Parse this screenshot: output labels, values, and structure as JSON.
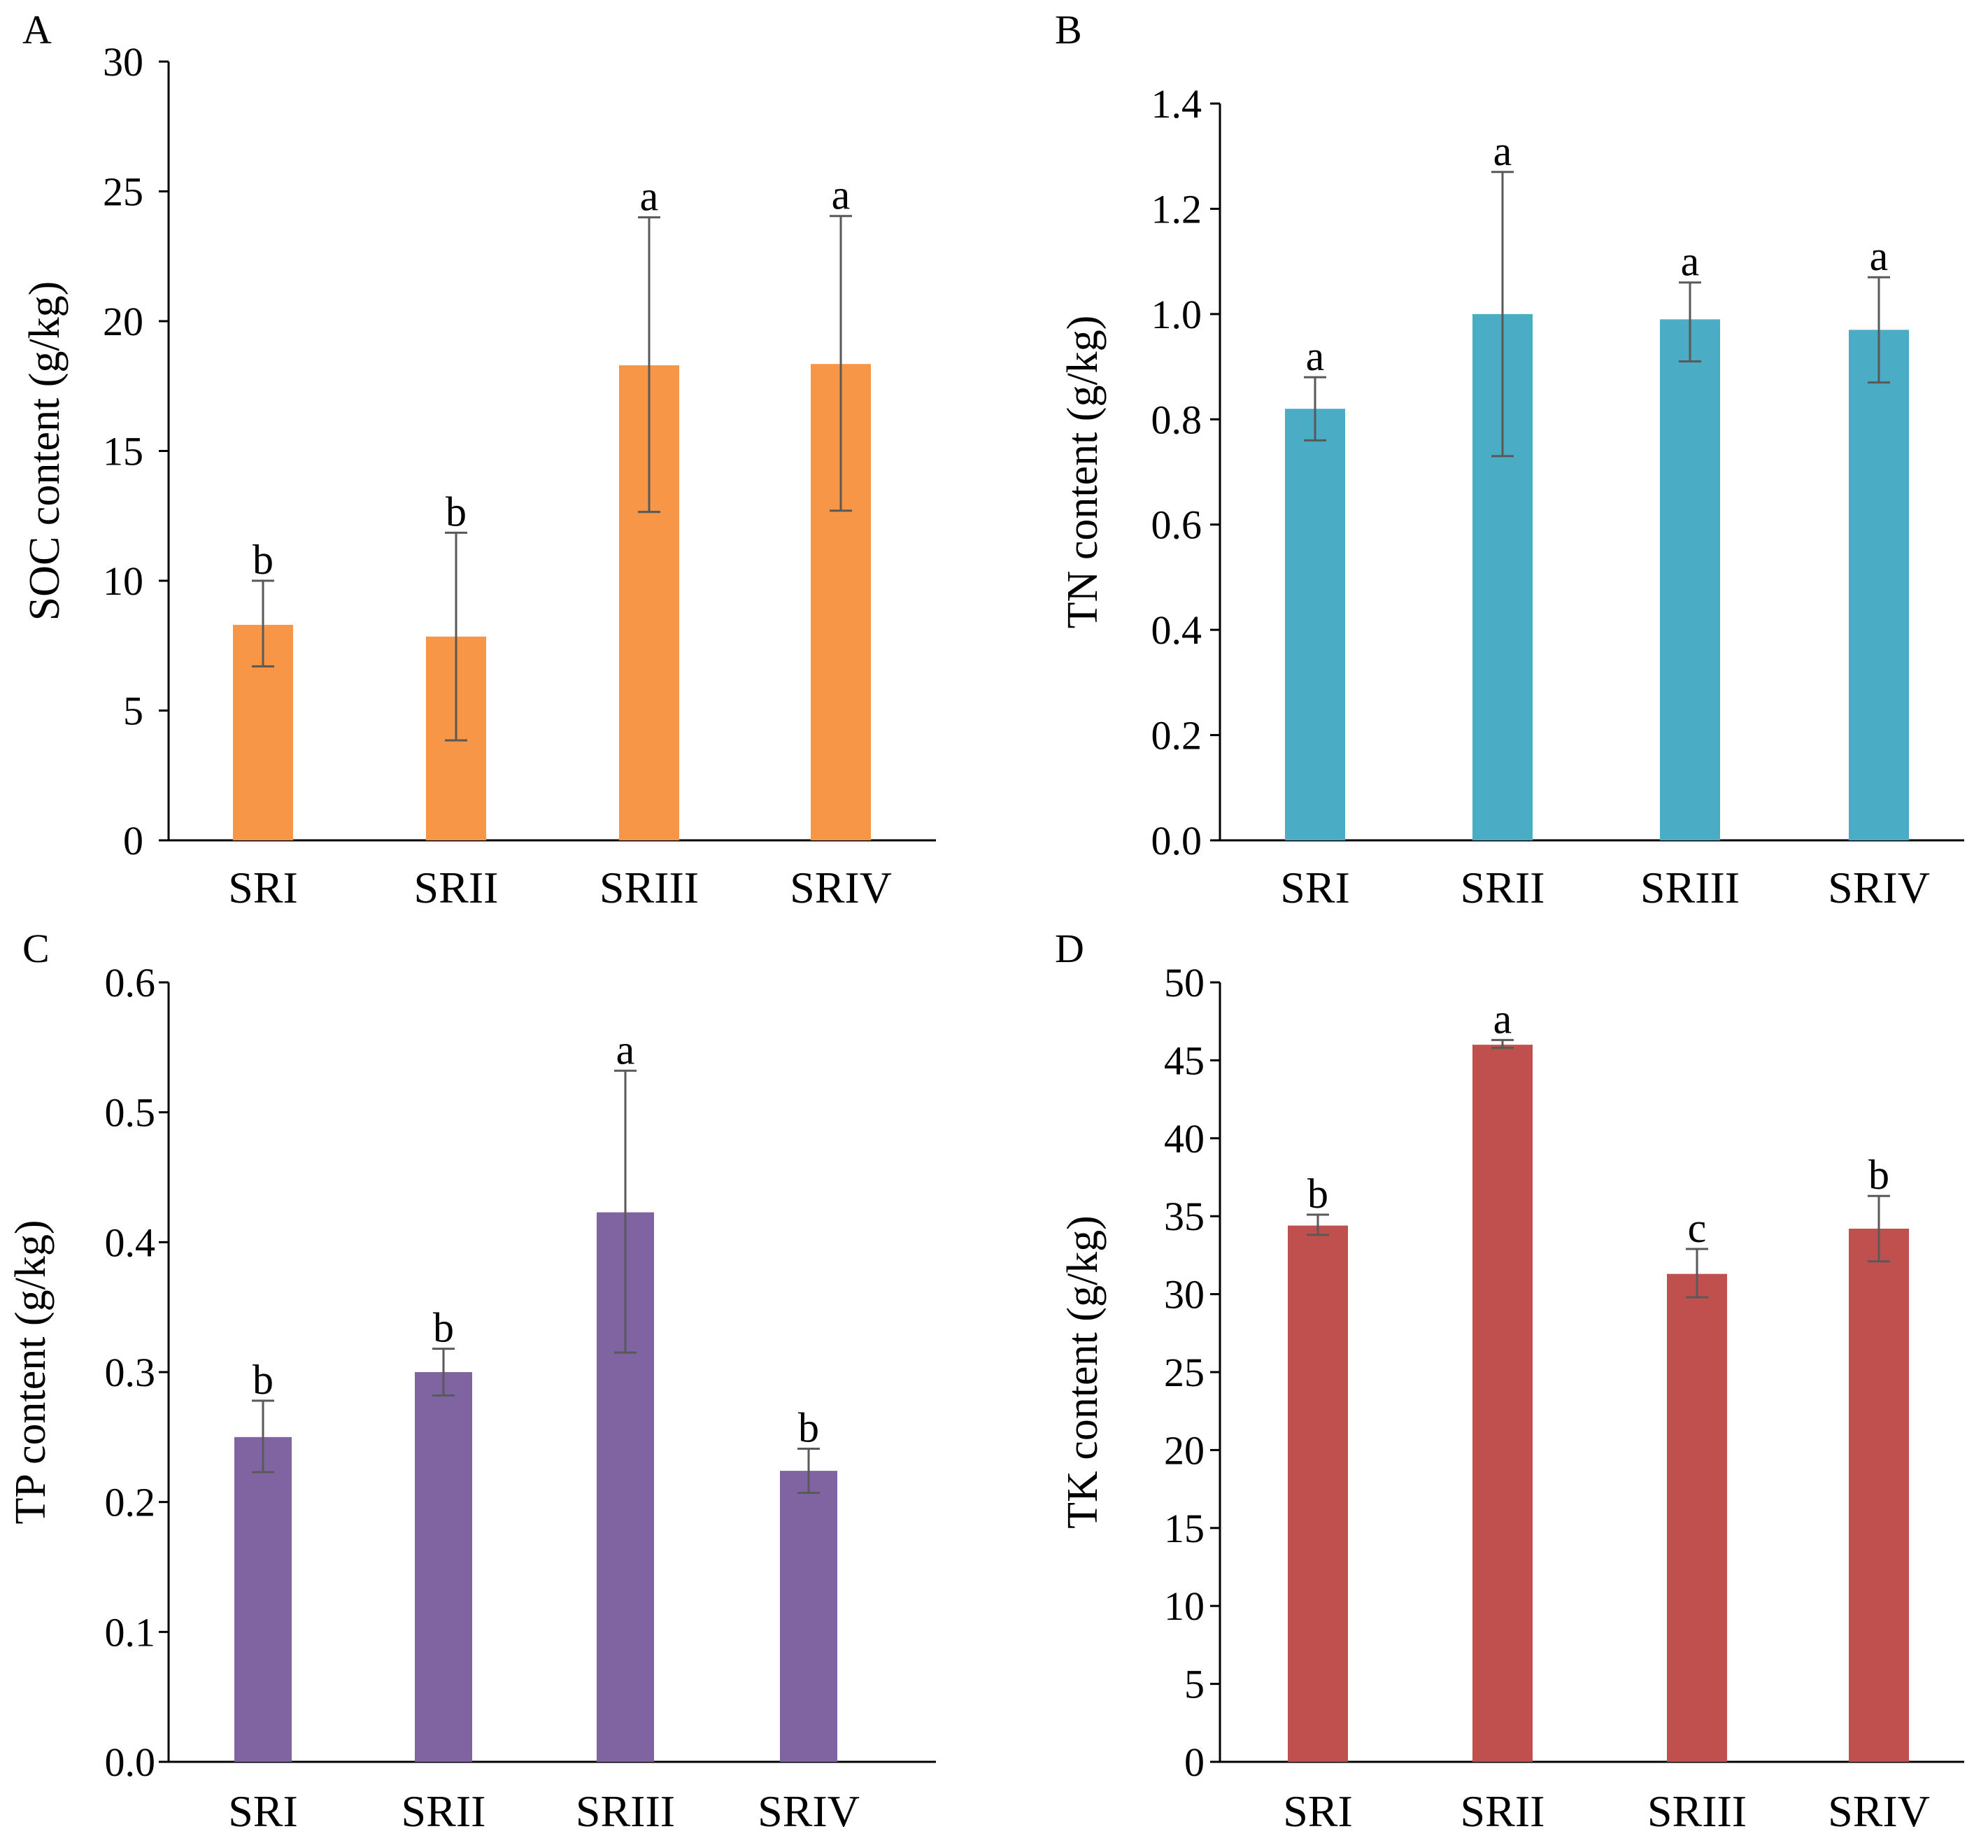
{
  "chart_data": [
    {
      "type": "bar",
      "panel_label": "A",
      "ylabel": "SOC content (g/kg)",
      "categories": [
        "SRI",
        "SRII",
        "SRIII",
        "SRIV"
      ],
      "values": [
        8.3,
        7.85,
        18.3,
        18.35
      ],
      "error_low": [
        6.7,
        3.85,
        12.65,
        12.7
      ],
      "error_high": [
        10.0,
        11.85,
        24.0,
        24.05
      ],
      "significance": [
        "b",
        "b",
        "a",
        "a"
      ],
      "ylim": [
        0,
        30
      ],
      "yticks": [
        0,
        5,
        10,
        15,
        20,
        25,
        30
      ],
      "ytick_labels": [
        "0",
        "5",
        "10",
        "15",
        "20",
        "25",
        "30"
      ],
      "color": "#F79646",
      "grid": false
    },
    {
      "type": "bar",
      "panel_label": "B",
      "ylabel": "TN content (g/kg)",
      "categories": [
        "SRI",
        "SRII",
        "SRIII",
        "SRIV"
      ],
      "values": [
        0.82,
        1.0,
        0.99,
        0.97
      ],
      "error_low": [
        0.76,
        0.73,
        0.91,
        0.87
      ],
      "error_high": [
        0.88,
        1.27,
        1.06,
        1.07
      ],
      "significance": [
        "a",
        "a",
        "a",
        "a"
      ],
      "ylim": [
        0,
        1.4
      ],
      "yticks": [
        0,
        0.2,
        0.4,
        0.6,
        0.8,
        1.0,
        1.2,
        1.4
      ],
      "ytick_labels": [
        "0.0",
        "0.2",
        "0.4",
        "0.6",
        "0.8",
        "1.0",
        "1.2",
        "1.4"
      ],
      "color": "#4BACC6",
      "grid": false
    },
    {
      "type": "bar",
      "panel_label": "C",
      "ylabel": "TP content (g/kg)",
      "categories": [
        "SRI",
        "SRII",
        "SRIII",
        "SRIV"
      ],
      "values": [
        0.25,
        0.3,
        0.423,
        0.224
      ],
      "error_low": [
        0.223,
        0.282,
        0.315,
        0.207
      ],
      "error_high": [
        0.278,
        0.318,
        0.532,
        0.241
      ],
      "significance": [
        "b",
        "b",
        "a",
        "b"
      ],
      "ylim": [
        0,
        0.6
      ],
      "yticks": [
        0,
        0.1,
        0.2,
        0.3,
        0.4,
        0.5,
        0.6
      ],
      "ytick_labels": [
        "0.0",
        "0.1",
        "0.2",
        "0.3",
        "0.4",
        "0.5",
        "0.6"
      ],
      "color": "#8064A2",
      "grid": false
    },
    {
      "type": "bar",
      "panel_label": "D",
      "ylabel": "TK content (g/kg)",
      "categories": [
        "SRI",
        "SRII",
        "SRIII",
        "SRIV"
      ],
      "values": [
        34.4,
        46.0,
        31.3,
        34.2
      ],
      "error_low": [
        33.8,
        45.8,
        29.8,
        32.1
      ],
      "error_high": [
        35.1,
        46.3,
        32.9,
        36.3
      ],
      "significance": [
        "b",
        "a",
        "c",
        "b"
      ],
      "ylim": [
        0,
        50
      ],
      "yticks": [
        0,
        5,
        10,
        15,
        20,
        25,
        30,
        35,
        40,
        45,
        50
      ],
      "ytick_labels": [
        "0",
        "5",
        "10",
        "15",
        "20",
        "25",
        "30",
        "35",
        "40",
        "45",
        "50"
      ],
      "color": "#C0504D",
      "grid": false
    }
  ]
}
